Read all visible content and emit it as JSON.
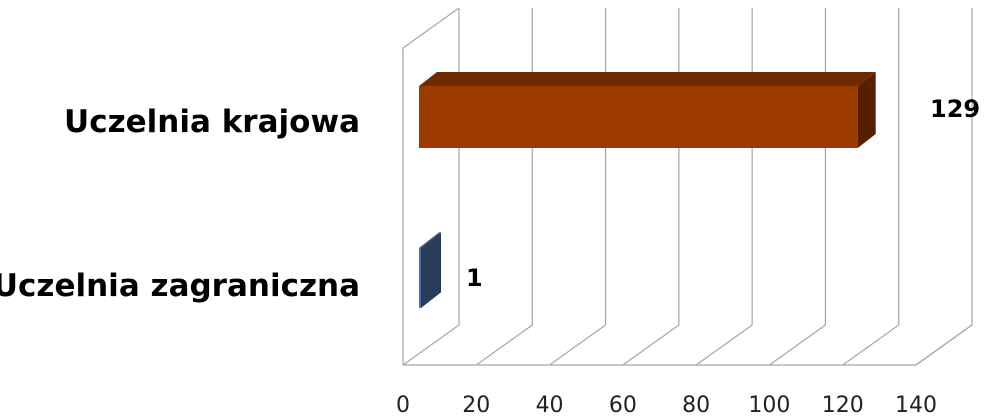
{
  "chart_data": {
    "type": "bar",
    "orientation": "horizontal",
    "style": "3d",
    "categories": [
      "Uczelnia krajowa",
      "Uczelnia zagraniczna"
    ],
    "values": [
      129,
      1
    ],
    "value_labels": [
      "129",
      "1"
    ],
    "colors": [
      "#9c3a00",
      "#4a6fa5"
    ],
    "xlim": [
      0,
      140
    ],
    "x_ticks": [
      "0",
      "20",
      "40",
      "60",
      "80",
      "100",
      "120",
      "140"
    ],
    "grid": true,
    "legend": "none"
  }
}
